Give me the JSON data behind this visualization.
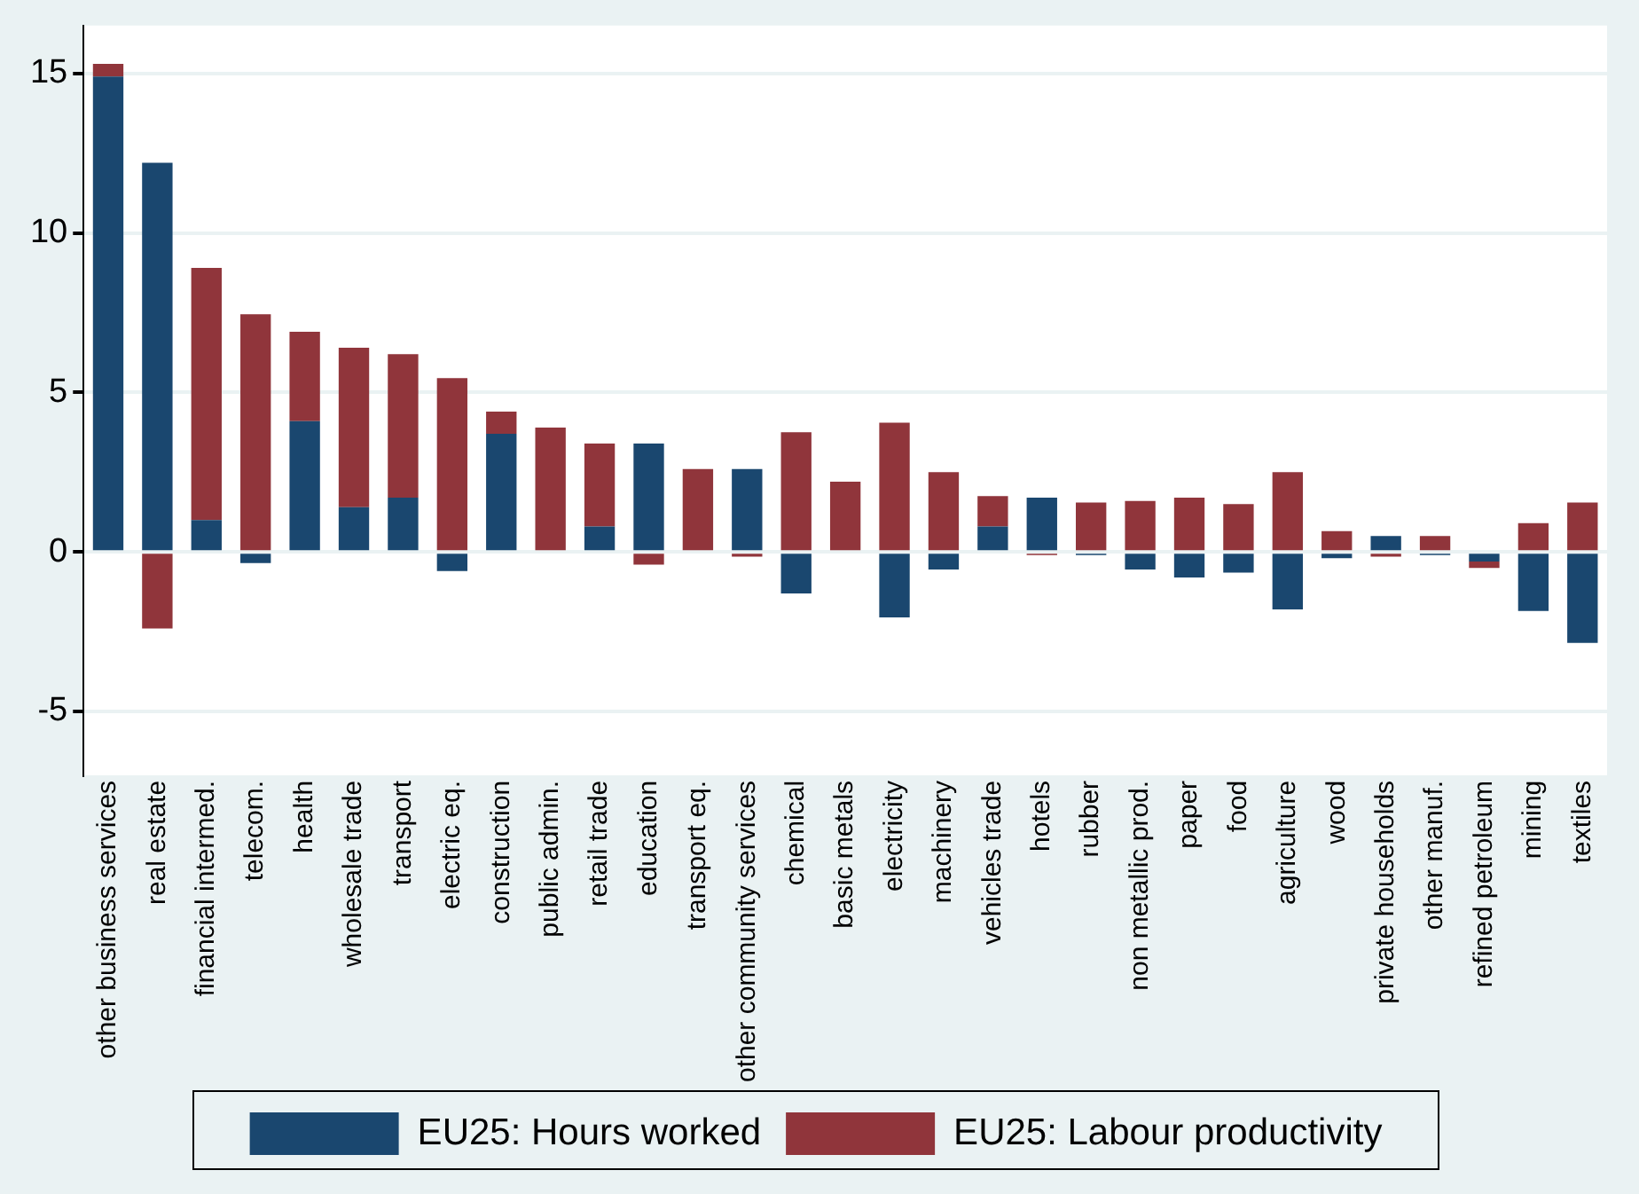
{
  "chart_data": {
    "type": "bar",
    "stacked": true,
    "categories": [
      "other business services",
      "real estate",
      "financial intermed.",
      "telecom.",
      "health",
      "wholesale trade",
      "transport",
      "electric eq.",
      "construction",
      "public admin.",
      "retail trade",
      "education",
      "transport eq.",
      "other community services",
      "chemical",
      "basic metals",
      "electricity",
      "machinery",
      "vehicles trade",
      "hotels",
      "rubber",
      "non metallic prod.",
      "paper",
      "food",
      "agriculture",
      "wood",
      "private households",
      "other manuf.",
      "refined petroleum",
      "mining",
      "textiles"
    ],
    "series": [
      {
        "name": "EU25: Hours worked",
        "color": "#1a476f",
        "values": [
          14.9,
          12.2,
          1.0,
          -0.35,
          4.1,
          1.4,
          1.7,
          -0.6,
          3.7,
          0,
          0.8,
          3.4,
          0,
          2.6,
          -1.3,
          0,
          -2.05,
          -0.55,
          0.8,
          1.7,
          -0.1,
          -0.55,
          -0.8,
          -0.65,
          -1.8,
          -0.2,
          0.5,
          -0.1,
          -0.3,
          -1.85,
          -2.85
        ]
      },
      {
        "name": "EU25: Labour productivity",
        "color": "#90353b",
        "values": [
          0.4,
          -2.4,
          7.9,
          7.45,
          2.8,
          5.0,
          4.5,
          5.45,
          0.7,
          3.9,
          2.6,
          -0.4,
          2.6,
          -0.15,
          3.75,
          2.2,
          4.05,
          2.5,
          0.95,
          -0.1,
          1.55,
          1.6,
          1.7,
          1.5,
          2.5,
          0.65,
          -0.15,
          0.5,
          -0.2,
          0.9,
          1.55
        ]
      }
    ],
    "ylim": [
      -7,
      16.5
    ],
    "yticks": [
      -5,
      0,
      5,
      10,
      15
    ],
    "grid": "y",
    "legend": "bottom"
  }
}
